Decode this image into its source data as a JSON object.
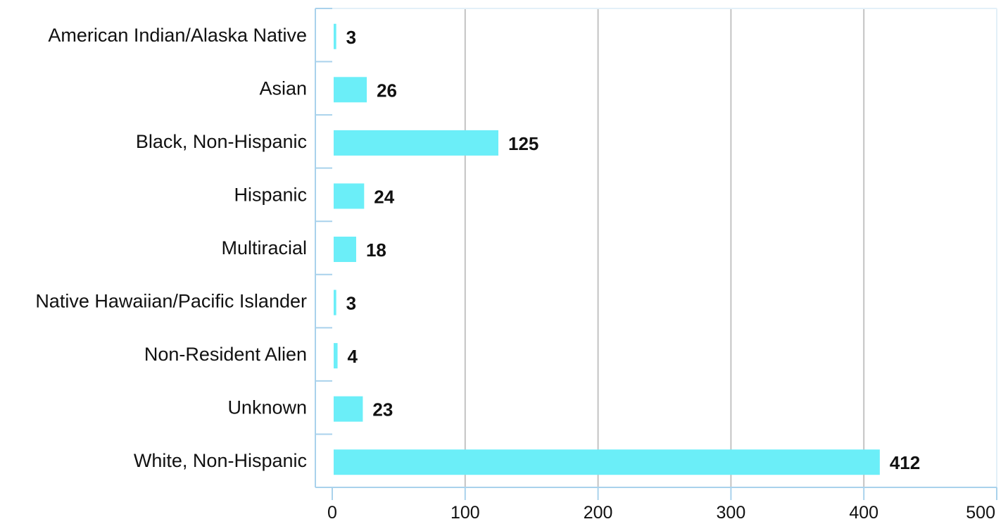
{
  "chart_data": {
    "type": "bar",
    "orientation": "horizontal",
    "title": "",
    "xlabel": "",
    "ylabel": "",
    "categories": [
      "American Indian/Alaska Native",
      "Asian",
      "Black, Non-Hispanic",
      "Hispanic",
      "Multiracial",
      "Native Hawaiian/Pacific Islander",
      "Non-Resident Alien",
      "Unknown",
      "White, Non-Hispanic"
    ],
    "values": [
      3,
      26,
      125,
      24,
      18,
      3,
      4,
      23,
      412
    ],
    "value_labels": [
      "3",
      "26",
      "125",
      "24",
      "18",
      "3",
      "4",
      "23",
      "412"
    ],
    "xlim": [
      0,
      500
    ],
    "xticks": [
      0,
      100,
      200,
      300,
      400,
      500
    ],
    "xtick_labels": [
      "0",
      "100",
      "200",
      "300",
      "400",
      "500"
    ],
    "grid": "vertical",
    "legend": "none",
    "colors": {
      "bar": "#6beef8",
      "grid": "#c3c3c3",
      "axis": "#a9d2ec",
      "text": "#111111"
    }
  }
}
